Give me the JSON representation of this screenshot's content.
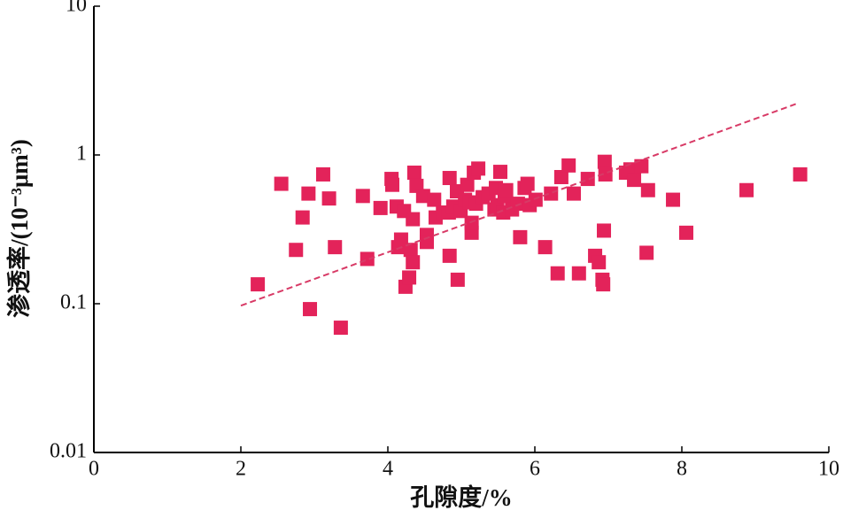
{
  "chart_data": {
    "type": "scatter",
    "xlabel": "孔隙度/%",
    "ylabel": "渗透率/(10⁻³μm³)",
    "x": [
      2.23,
      2.55,
      2.75,
      2.84,
      2.92,
      2.94,
      3.12,
      3.2,
      3.28,
      3.36,
      3.66,
      3.72,
      3.9,
      4.05,
      4.06,
      4.12,
      4.14,
      4.18,
      4.22,
      4.24,
      4.29,
      4.31,
      4.34,
      4.34,
      4.36,
      4.39,
      4.48,
      4.53,
      4.53,
      4.63,
      4.65,
      4.75,
      4.83,
      4.84,
      4.84,
      4.89,
      4.94,
      4.95,
      4.99,
      5.05,
      5.08,
      5.11,
      5.14,
      5.14,
      5.17,
      5.2,
      5.23,
      5.29,
      5.37,
      5.45,
      5.47,
      5.49,
      5.53,
      5.57,
      5.59,
      5.61,
      5.69,
      5.77,
      5.8,
      5.86,
      5.9,
      5.93,
      6.01,
      6.14,
      6.22,
      6.31,
      6.36,
      6.46,
      6.53,
      6.6,
      6.72,
      6.82,
      6.87,
      6.92,
      6.93,
      6.94,
      6.95,
      6.96,
      7.24,
      7.3,
      7.35,
      7.45,
      7.52,
      7.54,
      7.88,
      8.06,
      8.88,
      9.61
    ],
    "y": [
      0.135,
      0.64,
      0.23,
      0.38,
      0.55,
      0.092,
      0.74,
      0.51,
      0.24,
      0.069,
      0.53,
      0.2,
      0.44,
      0.69,
      0.63,
      0.45,
      0.24,
      0.27,
      0.42,
      0.13,
      0.15,
      0.23,
      0.19,
      0.37,
      0.76,
      0.62,
      0.53,
      0.29,
      0.26,
      0.5,
      0.38,
      0.41,
      0.41,
      0.7,
      0.21,
      0.45,
      0.57,
      0.145,
      0.42,
      0.5,
      0.63,
      0.48,
      0.3,
      0.35,
      0.76,
      0.47,
      0.81,
      0.52,
      0.55,
      0.43,
      0.6,
      0.46,
      0.77,
      0.41,
      0.53,
      0.58,
      0.43,
      0.47,
      0.28,
      0.6,
      0.64,
      0.46,
      0.5,
      0.24,
      0.55,
      0.16,
      0.71,
      0.85,
      0.55,
      0.16,
      0.69,
      0.21,
      0.19,
      0.145,
      0.135,
      0.31,
      0.9,
      0.74,
      0.76,
      0.8,
      0.68,
      0.84,
      0.22,
      0.58,
      0.5,
      0.3,
      0.58,
      0.74
    ],
    "color": "#e3235a",
    "trendline": {
      "x": [
        2,
        9.55
      ],
      "y": [
        0.097,
        2.2
      ],
      "color": "#d83a66"
    },
    "xlim": [
      0,
      10
    ],
    "xticks": [
      0,
      2,
      4,
      6,
      8,
      10
    ],
    "ylim": [
      0.01,
      10
    ],
    "yticks": [
      0.01,
      0.1,
      1,
      10
    ],
    "ylog": true
  }
}
